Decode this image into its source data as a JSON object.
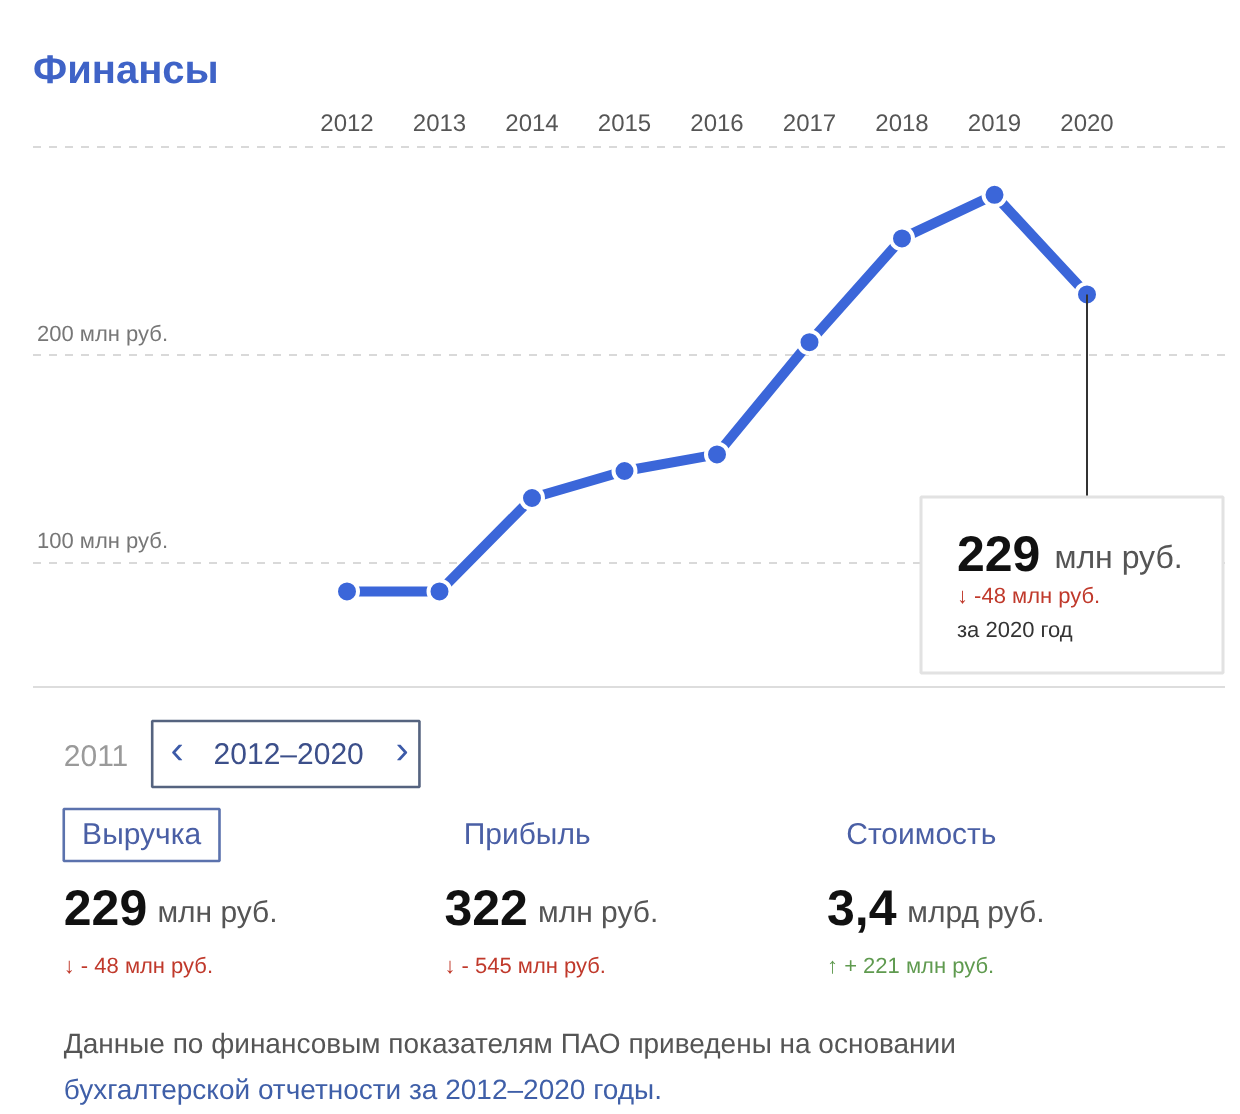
{
  "chart_data": {
    "type": "line",
    "title": "Финансы",
    "categories": [
      "2012",
      "2013",
      "2014",
      "2015",
      "2016",
      "2017",
      "2018",
      "2019",
      "2020"
    ],
    "series": [
      {
        "color": "#3b66d9",
        "values": [
          86,
          86,
          131,
          144,
          152,
          206,
          256,
          277,
          229
        ]
      }
    ],
    "ylim": [
      40,
      300
    ],
    "yticks": [
      {
        "value": 100,
        "label": "100 млн руб."
      },
      {
        "value": 200,
        "label": "200 млн руб."
      },
      {
        "value": 300,
        "label": null
      }
    ],
    "grid": "y",
    "marker": "circle",
    "line_style": "solid",
    "annotations": [
      {
        "text": "229 млн руб.\n↓ -48 млн руб.\nза 2020 год",
        "x": "2020",
        "y": 229
      },
      "2011",
      "‹",
      "2012–2020",
      "›",
      "Выручка",
      "Прибыль",
      "Стоимость",
      "229 млн руб.",
      "322 млн руб.",
      "3,4 млрд руб.",
      "↓ - 48 млн руб.",
      "↓ - 545 млн руб.",
      "↑ + 221 млн руб.",
      "Данные по финансовым показателям ПАО приведены на основании",
      "бухгалтерской отчетности за 2012–2020 годы."
    ]
  }
}
